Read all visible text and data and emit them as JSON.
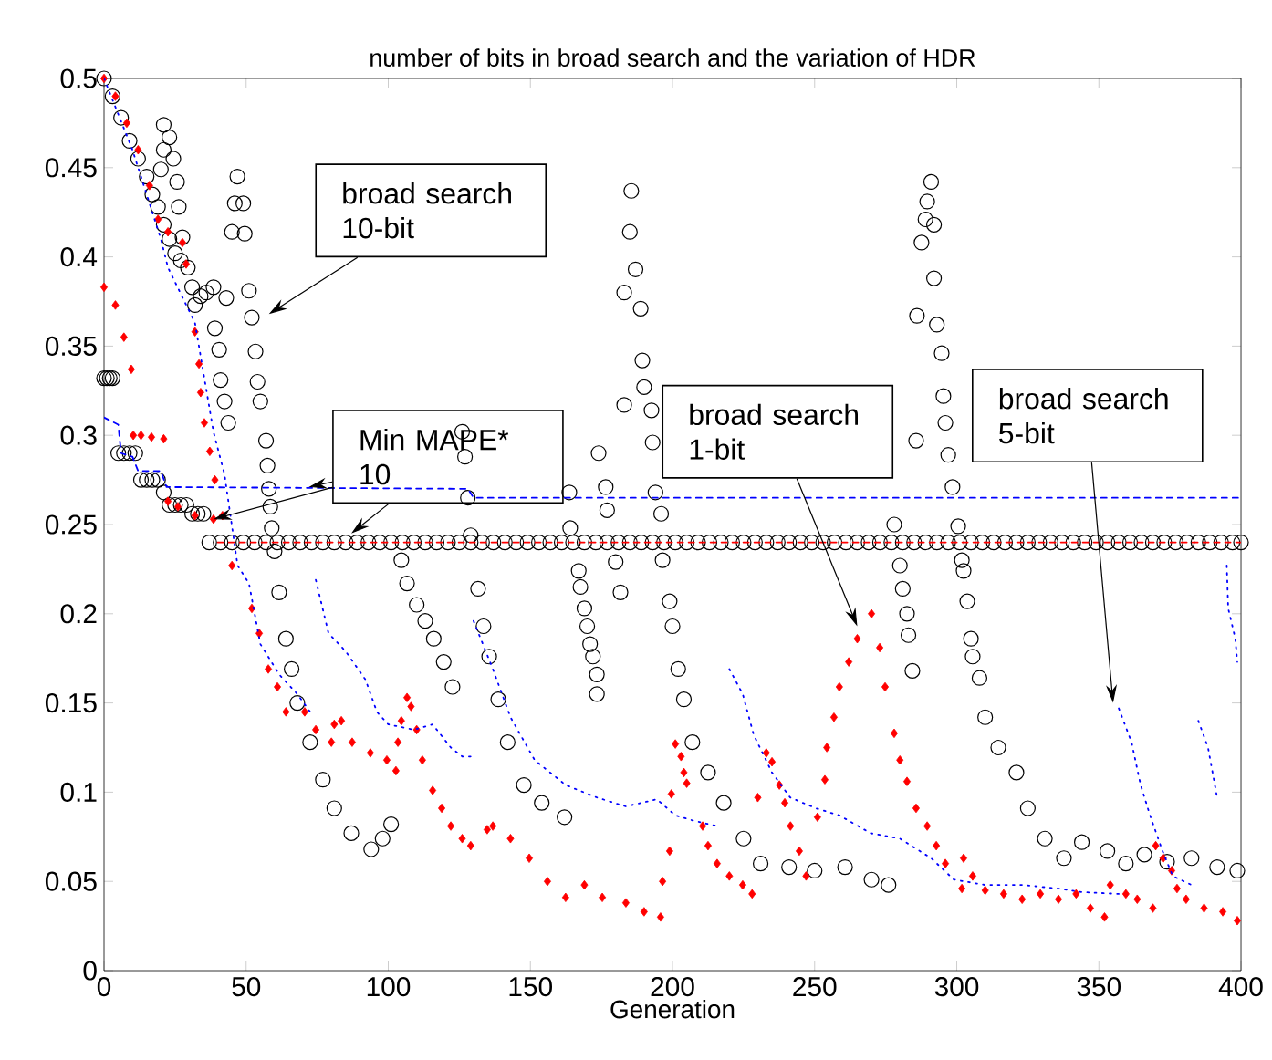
{
  "chart_data": {
    "type": "scatter",
    "title": "number of bits in broad search and the variation of HDR",
    "xlabel": "Generation",
    "xlim": [
      0,
      400
    ],
    "ylim": [
      0,
      0.5
    ],
    "xticks": [
      0,
      50,
      100,
      150,
      200,
      250,
      300,
      350,
      400
    ],
    "yticks": [
      0,
      0.05,
      0.1,
      0.15,
      0.2,
      0.25,
      0.3,
      0.35,
      0.4,
      0.45,
      0.5
    ],
    "series": [
      {
        "marker": "circle",
        "color": "#000000",
        "x": [
          0,
          3,
          6,
          9,
          12,
          15,
          17,
          19,
          21,
          23,
          25,
          27,
          29.5,
          31,
          32,
          34,
          36,
          38.5,
          43,
          39,
          40.5,
          41,
          42.4,
          43.7,
          21,
          23,
          21,
          24.4,
          20,
          25.7,
          26.3,
          27.6,
          46.9,
          46,
          49,
          45,
          49.5,
          51,
          52,
          53.3,
          54,
          55,
          57,
          57.5,
          58,
          58.5,
          59,
          60,
          61.6,
          64,
          66,
          68,
          72.5,
          77,
          81,
          87,
          94,
          98,
          101,
          104.6,
          106.6,
          110,
          113,
          116,
          119.5,
          122.6,
          126,
          127,
          128,
          129,
          131.6,
          133.5,
          135.5,
          138.7,
          142,
          147.7,
          154,
          162,
          163.7,
          164,
          167,
          167.6,
          169,
          170,
          171,
          172,
          173.4,
          173.4,
          174,
          176.5,
          177,
          180,
          181.7,
          185.5,
          185,
          187,
          183,
          188.8,
          189.4,
          190,
          183,
          192.6,
          193,
          194,
          196,
          196.5,
          199,
          200,
          202,
          204,
          207,
          212.5,
          218,
          225,
          231,
          241,
          250,
          260.7,
          270,
          276,
          278,
          280,
          281,
          282.5,
          283,
          284.4,
          285.7,
          291,
          289.6,
          289,
          292,
          287.6,
          292,
          286,
          293,
          294.7,
          295.3,
          296,
          297,
          298.5,
          300.5,
          301.8,
          302.4,
          303.7,
          305,
          305.6,
          308,
          310,
          314.6,
          321,
          325,
          331,
          337.7,
          344,
          353,
          359.5,
          366,
          374,
          382.6,
          391.6,
          398.7
        ],
        "values": [
          0.5,
          0.49,
          0.478,
          0.465,
          0.455,
          0.445,
          0.435,
          0.428,
          0.418,
          0.41,
          0.402,
          0.398,
          0.394,
          0.383,
          0.373,
          0.378,
          0.38,
          0.383,
          0.377,
          0.36,
          0.348,
          0.331,
          0.319,
          0.307,
          0.474,
          0.467,
          0.46,
          0.455,
          0.449,
          0.442,
          0.428,
          0.411,
          0.445,
          0.43,
          0.43,
          0.414,
          0.413,
          0.381,
          0.366,
          0.347,
          0.33,
          0.319,
          0.297,
          0.283,
          0.27,
          0.26,
          0.248,
          0.235,
          0.212,
          0.186,
          0.169,
          0.15,
          0.128,
          0.107,
          0.091,
          0.077,
          0.068,
          0.074,
          0.082,
          0.23,
          0.217,
          0.205,
          0.196,
          0.186,
          0.173,
          0.159,
          0.302,
          0.288,
          0.265,
          0.244,
          0.214,
          0.193,
          0.176,
          0.152,
          0.128,
          0.104,
          0.094,
          0.086,
          0.268,
          0.248,
          0.224,
          0.215,
          0.203,
          0.193,
          0.183,
          0.176,
          0.166,
          0.155,
          0.29,
          0.271,
          0.258,
          0.229,
          0.212,
          0.437,
          0.414,
          0.393,
          0.38,
          0.371,
          0.342,
          0.327,
          0.317,
          0.314,
          0.296,
          0.268,
          0.256,
          0.23,
          0.207,
          0.193,
          0.169,
          0.152,
          0.128,
          0.111,
          0.094,
          0.074,
          0.06,
          0.058,
          0.056,
          0.058,
          0.051,
          0.048,
          0.25,
          0.227,
          0.214,
          0.2,
          0.188,
          0.168,
          0.297,
          0.442,
          0.431,
          0.421,
          0.418,
          0.408,
          0.388,
          0.367,
          0.362,
          0.346,
          0.322,
          0.307,
          0.289,
          0.271,
          0.249,
          0.23,
          0.224,
          0.207,
          0.186,
          0.176,
          0.164,
          0.142,
          0.125,
          0.111,
          0.091,
          0.074,
          0.063,
          0.072,
          0.067,
          0.06,
          0.065,
          0.061,
          0.063,
          0.058,
          0.056
        ]
      },
      {
        "marker": "circle",
        "color": "#000000",
        "x": [
          0,
          1,
          2,
          3,
          5,
          7,
          9,
          11,
          13,
          15,
          17,
          19,
          21,
          23,
          25,
          27,
          29,
          31,
          33,
          35,
          37,
          41,
          45,
          49,
          53,
          57,
          61,
          65,
          69,
          73,
          77,
          81,
          85,
          89,
          93,
          97,
          101,
          105,
          109,
          113,
          117,
          121,
          125,
          129,
          133,
          137,
          141,
          145,
          149,
          153,
          157,
          161,
          165,
          169,
          173,
          177,
          181,
          185,
          189,
          193,
          197,
          201,
          205,
          209,
          213,
          217,
          221,
          225,
          229,
          233,
          237,
          241,
          245,
          249,
          253,
          257,
          261,
          265,
          269,
          273,
          277,
          281,
          285,
          289,
          293,
          297,
          301,
          305,
          309,
          313,
          317,
          321,
          325,
          329,
          333,
          337,
          341,
          345,
          349,
          353,
          357,
          361,
          365,
          369,
          373,
          377,
          381,
          385,
          389,
          393,
          397,
          400
        ],
        "values": [
          0.332,
          0.332,
          0.332,
          0.332,
          0.29,
          0.29,
          0.29,
          0.29,
          0.275,
          0.275,
          0.275,
          0.275,
          0.268,
          0.261,
          0.261,
          0.261,
          0.261,
          0.256,
          0.256,
          0.256,
          0.24,
          0.24,
          0.24,
          0.24,
          0.24,
          0.24,
          0.24,
          0.24,
          0.24,
          0.24,
          0.24,
          0.24,
          0.24,
          0.24,
          0.24,
          0.24,
          0.24,
          0.24,
          0.24,
          0.24,
          0.24,
          0.24,
          0.24,
          0.24,
          0.24,
          0.24,
          0.24,
          0.24,
          0.24,
          0.24,
          0.24,
          0.24,
          0.24,
          0.24,
          0.24,
          0.24,
          0.24,
          0.24,
          0.24,
          0.24,
          0.24,
          0.24,
          0.24,
          0.24,
          0.24,
          0.24,
          0.24,
          0.24,
          0.24,
          0.24,
          0.24,
          0.24,
          0.24,
          0.24,
          0.24,
          0.24,
          0.24,
          0.24,
          0.24,
          0.24,
          0.24,
          0.24,
          0.24,
          0.24,
          0.24,
          0.24,
          0.24,
          0.24,
          0.24,
          0.24,
          0.24,
          0.24,
          0.24,
          0.24,
          0.24,
          0.24,
          0.24,
          0.24,
          0.24,
          0.24,
          0.24,
          0.24,
          0.24,
          0.24,
          0.24,
          0.24,
          0.24,
          0.24,
          0.24,
          0.24,
          0.24,
          0.24
        ]
      },
      {
        "marker": "diamond",
        "color": "#ff0000",
        "x": [
          0,
          4,
          8,
          12,
          16,
          19,
          22.5,
          27.6,
          28.9,
          32,
          33.4,
          34,
          35.3,
          37.2,
          39,
          41.7,
          45,
          52,
          54.6,
          57.8,
          61,
          64,
          70.6,
          74.5,
          80,
          81,
          83.5,
          87.3,
          93.7,
          99.5,
          102.7,
          0,
          4,
          7,
          9.6,
          10.3,
          13,
          16.7,
          21,
          22.5,
          26,
          32,
          38.5,
          103.4,
          104.6,
          106.6,
          108,
          110,
          112,
          115.6,
          118.8,
          122,
          126,
          129,
          134.8,
          136.8,
          143,
          149.6,
          156,
          162.4,
          169,
          175.3,
          183.6,
          190,
          195.8,
          196.5,
          199,
          199.6,
          201,
          203,
          204,
          205,
          210.6,
          212.5,
          215.7,
          220,
          224.7,
          228,
          230,
          233,
          235,
          237.6,
          239.5,
          241.5,
          244.6,
          247,
          251,
          253.6,
          254.3,
          256.8,
          258.7,
          262,
          265,
          270,
          272.9,
          274.8,
          278,
          280,
          282.5,
          285.7,
          289.6,
          292.8,
          296,
          301.8,
          302.4,
          305.6,
          310,
          316.5,
          323,
          329.4,
          335.8,
          342,
          347,
          352,
          354,
          359.5,
          363.5,
          369,
          370,
          372.6,
          375.6,
          377.5,
          380.7,
          387,
          393.6,
          398.7
        ],
        "values": [
          0.5,
          0.49,
          0.475,
          0.46,
          0.44,
          0.421,
          0.414,
          0.408,
          0.396,
          0.358,
          0.34,
          0.324,
          0.307,
          0.291,
          0.275,
          0.255,
          0.227,
          0.203,
          0.189,
          0.169,
          0.159,
          0.145,
          0.145,
          0.135,
          0.128,
          0.138,
          0.14,
          0.128,
          0.122,
          0.118,
          0.112,
          0.383,
          0.373,
          0.355,
          0.337,
          0.3,
          0.3,
          0.299,
          0.298,
          0.263,
          0.26,
          0.255,
          0.253,
          0.128,
          0.14,
          0.153,
          0.148,
          0.135,
          0.118,
          0.101,
          0.091,
          0.081,
          0.074,
          0.07,
          0.079,
          0.081,
          0.074,
          0.063,
          0.05,
          0.041,
          0.048,
          0.041,
          0.038,
          0.033,
          0.03,
          0.05,
          0.067,
          0.099,
          0.127,
          0.12,
          0.111,
          0.105,
          0.081,
          0.07,
          0.06,
          0.053,
          0.048,
          0.043,
          0.097,
          0.122,
          0.117,
          0.104,
          0.094,
          0.081,
          0.067,
          0.053,
          0.086,
          0.107,
          0.125,
          0.142,
          0.159,
          0.173,
          0.186,
          0.2,
          0.181,
          0.159,
          0.133,
          0.118,
          0.106,
          0.091,
          0.081,
          0.07,
          0.06,
          0.046,
          0.063,
          0.053,
          0.045,
          0.043,
          0.04,
          0.043,
          0.04,
          0.043,
          0.035,
          0.03,
          0.048,
          0.043,
          0.04,
          0.035,
          0.07,
          0.063,
          0.056,
          0.046,
          0.04,
          0.035,
          0.033,
          0.028
        ]
      },
      {
        "type": "line",
        "line_style": "dashed",
        "color": "#ff0000",
        "x": [
          40,
          400
        ],
        "values": [
          0.24,
          0.24
        ]
      },
      {
        "type": "line",
        "line_style": "dotted",
        "color": "#0000ff",
        "x": [
          0,
          10,
          20,
          22.5,
          32,
          38.5,
          42.4,
          47,
          51,
          55,
          61.6,
          68,
          72.5
        ],
        "values": [
          0.5,
          0.46,
          0.41,
          0.394,
          0.363,
          0.302,
          0.278,
          0.227,
          0.217,
          0.183,
          0.166,
          0.155,
          0.145
        ]
      },
      {
        "type": "line",
        "line_style": "dotted",
        "color": "#0000ff",
        "x": [
          74.5,
          79,
          85,
          92,
          96,
          100,
          109,
          115.6,
          122,
          126,
          129.8
        ],
        "values": [
          0.219,
          0.189,
          0.179,
          0.163,
          0.145,
          0.138,
          0.135,
          0.138,
          0.125,
          0.12,
          0.12
        ]
      },
      {
        "type": "line",
        "line_style": "dotted",
        "color": "#0000ff",
        "x": [
          130,
          136.8,
          143,
          151.5,
          162.4,
          173.4,
          183.6,
          194.5,
          201,
          207.4,
          215.7
        ],
        "values": [
          0.196,
          0.169,
          0.142,
          0.118,
          0.104,
          0.097,
          0.092,
          0.096,
          0.087,
          0.084,
          0.081
        ]
      },
      {
        "type": "line",
        "line_style": "dotted",
        "color": "#0000ff",
        "x": [
          220,
          224.7,
          228.6,
          235,
          241.4,
          250.4,
          258.7,
          269.7,
          280,
          291,
          299,
          310,
          323,
          335.8,
          344,
          357
        ],
        "values": [
          0.169,
          0.155,
          0.132,
          0.111,
          0.097,
          0.091,
          0.087,
          0.077,
          0.074,
          0.063,
          0.051,
          0.048,
          0.048,
          0.046,
          0.044,
          0.043
        ]
      },
      {
        "type": "line",
        "line_style": "dotted",
        "color": "#0000ff",
        "x": [
          357,
          361.5,
          364.7,
          368,
          372.4,
          376,
          382.6
        ],
        "values": [
          0.147,
          0.128,
          0.104,
          0.087,
          0.067,
          0.053,
          0.048
        ]
      },
      {
        "type": "line",
        "line_style": "dotted",
        "color": "#0000ff",
        "x": [
          385,
          388.4,
          391.6
        ],
        "values": [
          0.14,
          0.125,
          0.097
        ]
      },
      {
        "type": "line",
        "line_style": "dotted",
        "color": "#0000ff",
        "x": [
          395,
          395.5,
          398,
          398.7
        ],
        "values": [
          0.227,
          0.203,
          0.186,
          0.173
        ]
      },
      {
        "type": "line",
        "line_style": "dashed",
        "color": "#0000ff",
        "x": [
          0,
          5,
          6,
          10,
          12,
          20,
          22,
          128,
          130,
          400
        ],
        "values": [
          0.31,
          0.306,
          0.29,
          0.288,
          0.28,
          0.28,
          0.271,
          0.27,
          0.265,
          0.265
        ]
      }
    ],
    "annotations": [
      "broad search 10-bit",
      {
        "text": "Min MAPE* 10",
        "x": 38.5,
        "y": 0.253
      },
      "broad search 1-bit",
      "broad search 5-bit"
    ]
  }
}
